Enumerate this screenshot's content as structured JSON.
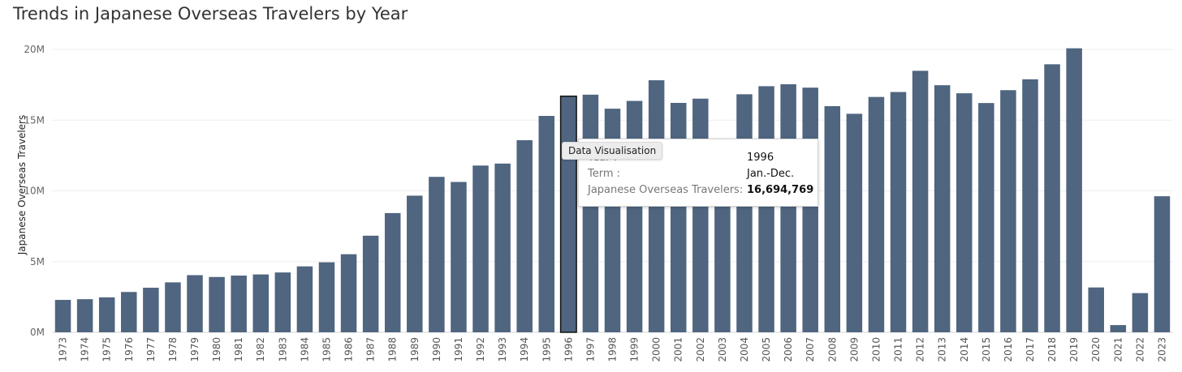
{
  "chart_data": {
    "type": "bar",
    "title": "Trends in Japanese Overseas Travelers by Year",
    "ylabel": "Japanese Overseas Travelers",
    "xlabel": "",
    "ylim": [
      0,
      20000000
    ],
    "yticks": [
      0,
      5000000,
      10000000,
      15000000,
      20000000
    ],
    "ytick_labels": [
      "0M",
      "5M",
      "10M",
      "15M",
      "20M"
    ],
    "grid": "horizontal",
    "bar_color": "#4f6580",
    "highlight_category": "1996",
    "categories": [
      "1973",
      "1974",
      "1975",
      "1976",
      "1977",
      "1978",
      "1979",
      "1980",
      "1981",
      "1982",
      "1983",
      "1984",
      "1985",
      "1986",
      "1987",
      "1988",
      "1989",
      "1990",
      "1991",
      "1992",
      "1993",
      "1994",
      "1995",
      "1996",
      "1997",
      "1998",
      "1999",
      "2000",
      "2001",
      "2002",
      "2003",
      "2004",
      "2005",
      "2006",
      "2007",
      "2008",
      "2009",
      "2010",
      "2011",
      "2012",
      "2013",
      "2014",
      "2015",
      "2016",
      "2017",
      "2018",
      "2019",
      "2020",
      "2021",
      "2022",
      "2023"
    ],
    "values": [
      2290000,
      2340000,
      2470000,
      2850000,
      3150000,
      3530000,
      4040000,
      3910000,
      4010000,
      4090000,
      4230000,
      4660000,
      4950000,
      5520000,
      6830000,
      8430000,
      9660000,
      10990000,
      10630000,
      11790000,
      11930000,
      13580000,
      15300000,
      16694769,
      16800000,
      15810000,
      16360000,
      17820000,
      16220000,
      16520000,
      13300000,
      16830000,
      17400000,
      17540000,
      17300000,
      15990000,
      15450000,
      16640000,
      16990000,
      18490000,
      17470000,
      16900000,
      16210000,
      17120000,
      17890000,
      18950000,
      20080000,
      3170000,
      510000,
      2770000,
      9620000
    ]
  },
  "tooltip": {
    "rows": [
      {
        "label": "Year :",
        "value": "1996"
      },
      {
        "label": "Term :",
        "value": "Jan.-Dec."
      },
      {
        "label": "Japanese Overseas Travelers:",
        "value": "16,694,769"
      }
    ]
  },
  "hover_label": "Data Visualisation"
}
